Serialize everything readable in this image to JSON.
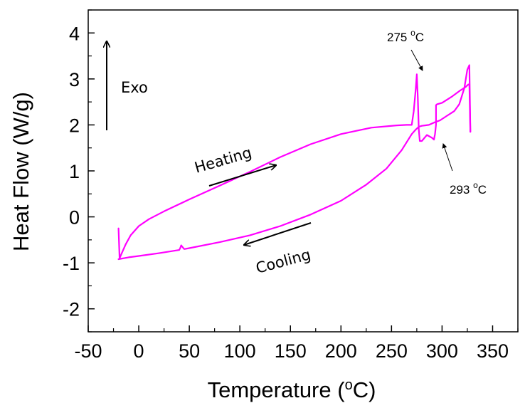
{
  "chart_data": {
    "type": "line",
    "title": "",
    "xlabel": "Temperature (",
    "xlabel_sup": "o",
    "xlabel_end": "C)",
    "ylabel": "Heat Flow (W/g)",
    "xlim": [
      -50,
      375
    ],
    "ylim": [
      -2.5,
      4.5
    ],
    "xticks": [
      -50,
      0,
      50,
      100,
      150,
      200,
      250,
      300,
      350
    ],
    "xtick_labels": [
      "-50",
      "0",
      "50",
      "100",
      "150",
      "200",
      "250",
      "300",
      "350"
    ],
    "yticks": [
      -2,
      -1,
      0,
      1,
      2,
      3,
      4
    ],
    "ytick_labels": [
      "-2",
      "-1",
      "0",
      "1",
      "2",
      "3",
      "4"
    ],
    "grid": false,
    "line_color": "#ff00ff",
    "series": [
      {
        "x": [
          -20,
          -19,
          -17,
          -13,
          -8,
          0,
          10,
          25,
          50,
          80,
          110,
          140,
          170,
          200,
          230,
          255,
          265,
          270,
          272,
          274,
          275,
          276,
          277,
          278,
          280,
          285,
          290,
          292,
          293,
          294,
          294,
          295,
          300,
          310,
          318,
          323,
          326,
          327,
          328
        ],
        "y": [
          -0.25,
          -0.9,
          -0.8,
          -0.6,
          -0.4,
          -0.2,
          -0.05,
          0.12,
          0.38,
          0.68,
          0.98,
          1.3,
          1.58,
          1.8,
          1.94,
          1.99,
          2.0,
          2.0,
          2.3,
          2.8,
          3.1,
          2.6,
          1.9,
          1.65,
          1.65,
          1.78,
          1.72,
          1.68,
          1.8,
          2.0,
          2.43,
          2.45,
          2.48,
          2.62,
          2.75,
          2.82,
          2.88,
          2.88,
          1.85
        ]
      },
      {
        "x": [
          328,
          327,
          325,
          322,
          317,
          312,
          305,
          298,
          292,
          287,
          283,
          280,
          277,
          274,
          270,
          260,
          245,
          225,
          200,
          170,
          140,
          110,
          80,
          50,
          45,
          43,
          42,
          41,
          40,
          20,
          0,
          -10,
          -20
        ],
        "y": [
          1.85,
          3.3,
          3.2,
          2.8,
          2.45,
          2.3,
          2.2,
          2.1,
          2.05,
          2.0,
          1.99,
          1.98,
          1.96,
          1.9,
          1.8,
          1.45,
          1.05,
          0.7,
          0.35,
          0.05,
          -0.2,
          -0.4,
          -0.55,
          -0.68,
          -0.7,
          -0.65,
          -0.62,
          -0.68,
          -0.72,
          -0.79,
          -0.85,
          -0.88,
          -0.92
        ]
      }
    ],
    "annotations": {
      "exo": "Exo",
      "heating": "Heating",
      "cooling": "Cooling",
      "peak1": {
        "label": "275 ",
        "sup": "o",
        "end": "C"
      },
      "peak2": {
        "label": "293 ",
        "sup": "o",
        "end": "C"
      }
    }
  }
}
